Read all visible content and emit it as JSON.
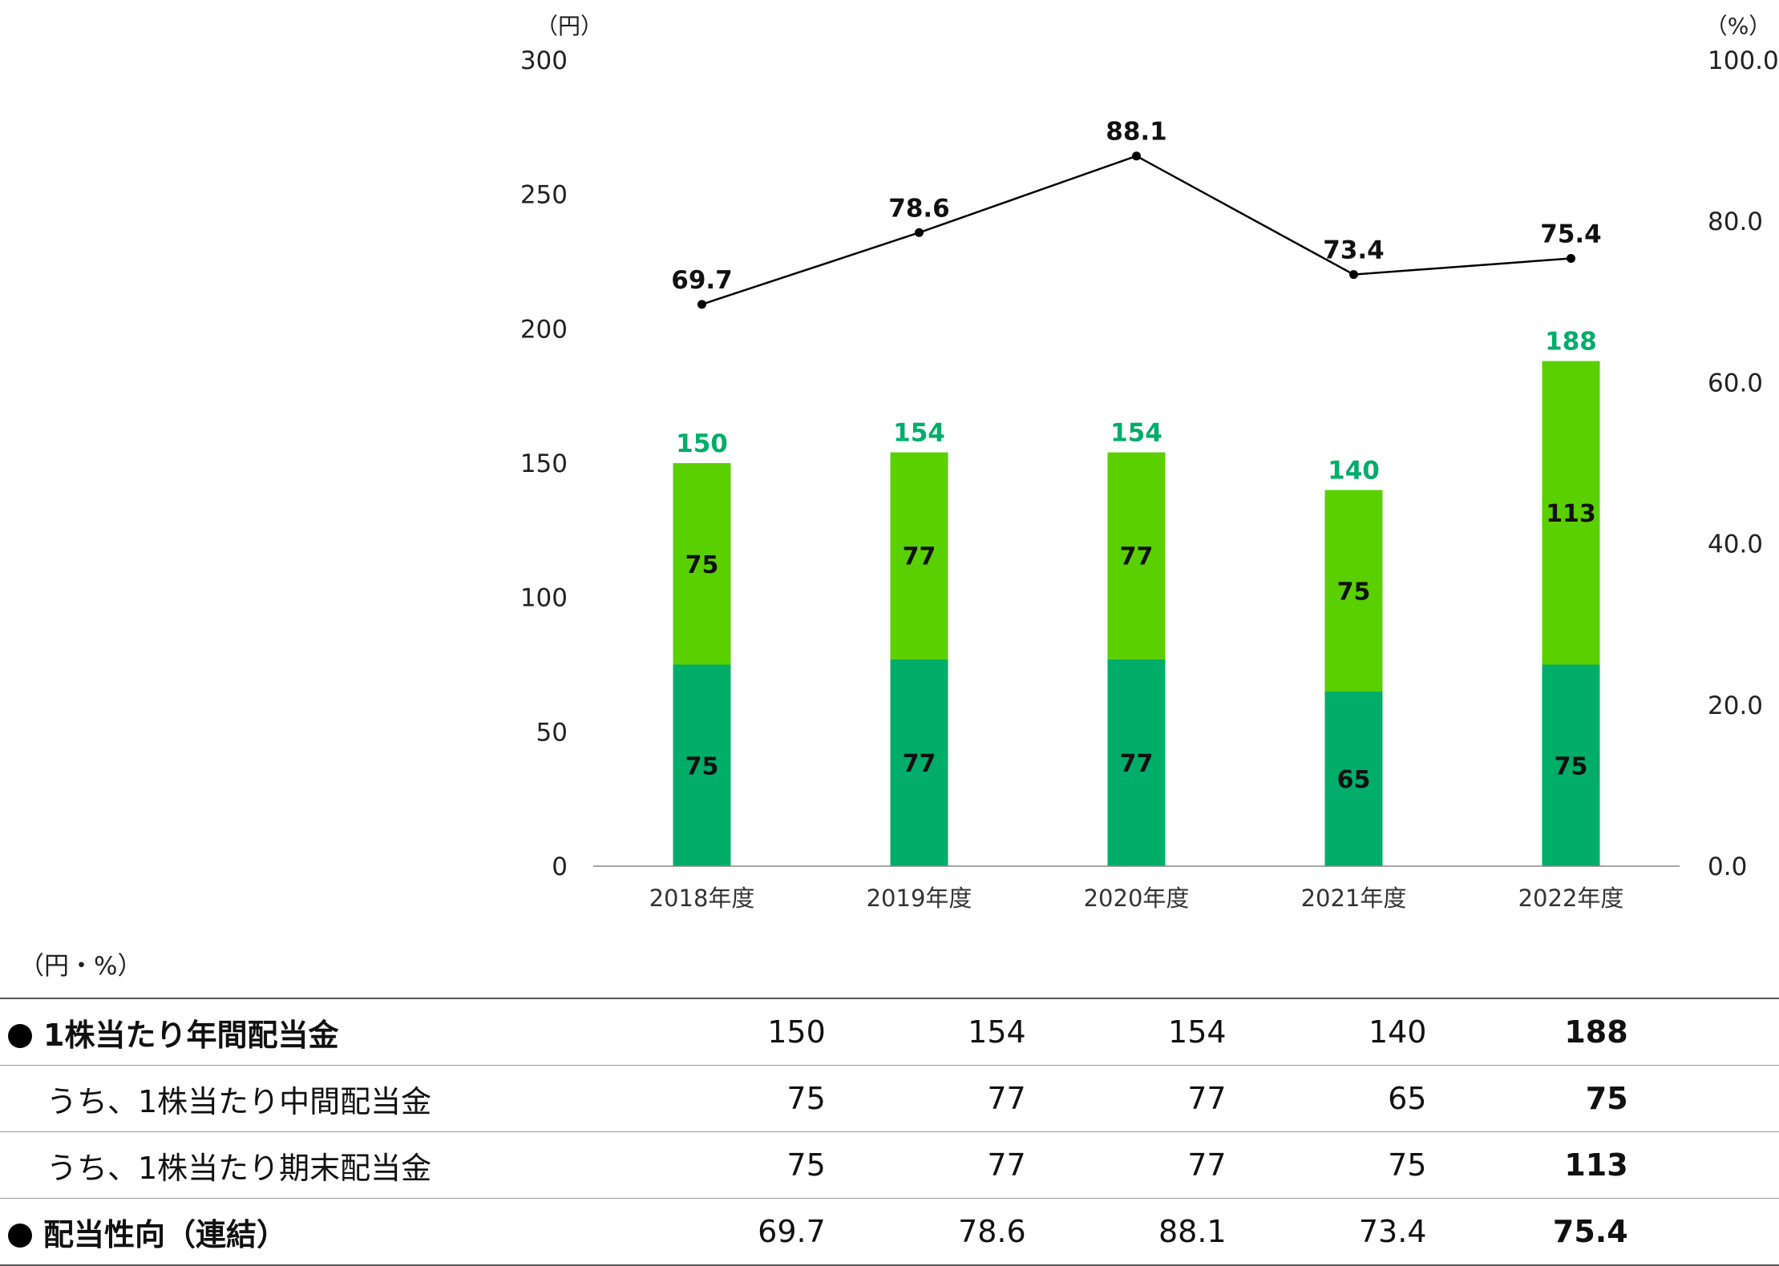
{
  "chart_data": {
    "type": "bar",
    "categories": [
      "2018年度",
      "2019年度",
      "2020年度",
      "2021年度",
      "2022年度"
    ],
    "series": [
      {
        "name": "うち、1株当たり中間配当金",
        "type": "bar",
        "stack": "dividend",
        "axis": "left",
        "color": "#00ad69",
        "values": [
          75,
          77,
          77,
          65,
          75
        ]
      },
      {
        "name": "うち、1株当たり期末配当金",
        "type": "bar",
        "stack": "dividend",
        "axis": "left",
        "color": "#5bd000",
        "values": [
          75,
          77,
          77,
          75,
          113
        ]
      },
      {
        "name": "配当性向（連結）",
        "type": "line",
        "axis": "right",
        "color": "#000000",
        "values": [
          69.7,
          78.6,
          88.1,
          73.4,
          75.4
        ]
      }
    ],
    "totals": [
      150,
      154,
      154,
      140,
      188
    ],
    "total_label_color": "#00ad69",
    "y_left": {
      "unit": "（円）",
      "ylim": [
        0,
        300
      ],
      "ticks": [
        "0",
        "50",
        "100",
        "150",
        "200",
        "250",
        "300"
      ]
    },
    "y_right": {
      "unit": "（%）",
      "ylim": [
        0,
        100
      ],
      "ticks": [
        "0.0",
        "20.0",
        "40.0",
        "60.0",
        "80.0",
        "100.0"
      ]
    },
    "grid": false,
    "legend_position": "bottom"
  },
  "table": {
    "unit_note": "（円・%）",
    "rows": [
      {
        "label": "1株当たり年間配当金",
        "bullet": true,
        "values": [
          "150",
          "154",
          "154",
          "140",
          "188"
        ]
      },
      {
        "label": "うち、1株当たり中間配当金",
        "bullet": false,
        "values": [
          "75",
          "77",
          "77",
          "65",
          "75"
        ]
      },
      {
        "label": "うち、1株当たり期末配当金",
        "bullet": false,
        "values": [
          "75",
          "77",
          "77",
          "75",
          "113"
        ]
      },
      {
        "label": "配当性向（連結）",
        "bullet": true,
        "values": [
          "69.7",
          "78.6",
          "88.1",
          "73.4",
          "75.4"
        ]
      }
    ]
  }
}
